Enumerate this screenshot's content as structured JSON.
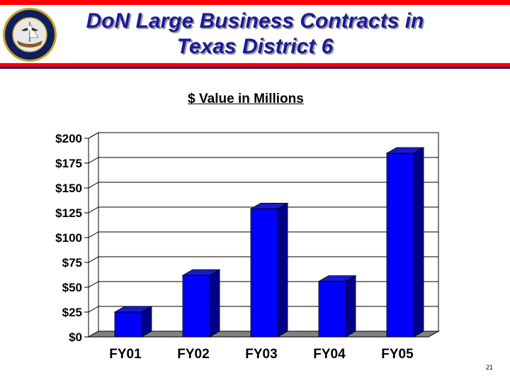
{
  "slide": {
    "title_line1": "DoN Large Business Contracts in",
    "title_line2": "Texas District 6",
    "page_number": "21",
    "logo": "department-of-the-navy-seal"
  },
  "colors": {
    "accent_red": "#ff0000",
    "title_blue": "#1a1a99",
    "bar_front": "#0000ff",
    "bar_side": "#00008b",
    "bar_top": "#1a1acc"
  },
  "chart_data": {
    "type": "bar",
    "title": "$ Value in Millions",
    "categories": [
      "FY01",
      "FY02",
      "FY03",
      "FY04",
      "FY05"
    ],
    "values": [
      25,
      62,
      129,
      56,
      185
    ],
    "ylim": [
      0,
      200
    ],
    "yticks": [
      "$0",
      "$25",
      "$50",
      "$75",
      "$100",
      "$125",
      "$150",
      "$175",
      "$200"
    ],
    "xlabel": "",
    "ylabel": "",
    "grid": true,
    "legend": "none",
    "style": "3d"
  }
}
